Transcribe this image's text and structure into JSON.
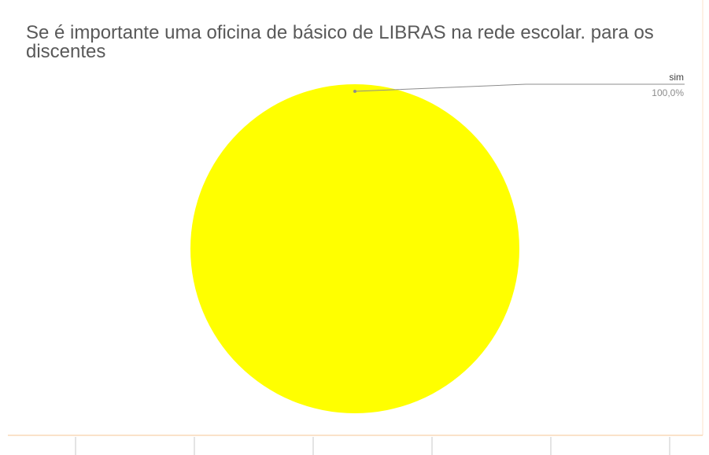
{
  "chart_data": {
    "type": "pie",
    "title": "Se é importante uma oficina de básico de LIBRAS na rede escolar. para os discentes",
    "categories": [
      "sim"
    ],
    "values": [
      100
    ],
    "value_labels": [
      "100,0%"
    ],
    "colors": [
      "#ffff00"
    ]
  }
}
